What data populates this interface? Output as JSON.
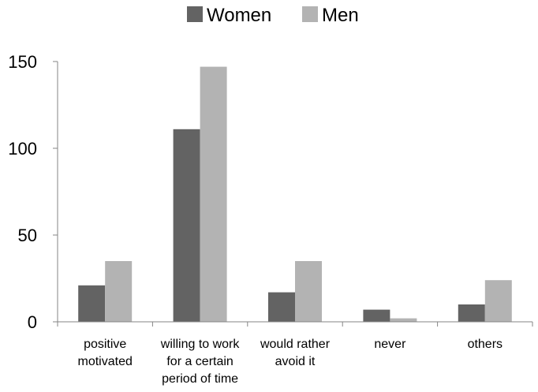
{
  "chart_data": {
    "type": "bar",
    "categories": [
      [
        "positive",
        "motivated"
      ],
      [
        "willing to work",
        "for a certain",
        "period of time"
      ],
      [
        "would rather",
        "avoid it"
      ],
      [
        "never"
      ],
      [
        "others"
      ]
    ],
    "series": [
      {
        "name": "Women",
        "values": [
          21,
          111,
          17,
          7,
          10
        ],
        "color": "#636363"
      },
      {
        "name": "Men",
        "values": [
          35,
          147,
          35,
          2,
          24
        ],
        "color": "#b3b3b3"
      }
    ],
    "ylim": [
      0,
      150
    ],
    "yticks": [
      0,
      50,
      100,
      150
    ],
    "grid": false,
    "legend_position": "top-center",
    "axis_color": "#868686"
  }
}
